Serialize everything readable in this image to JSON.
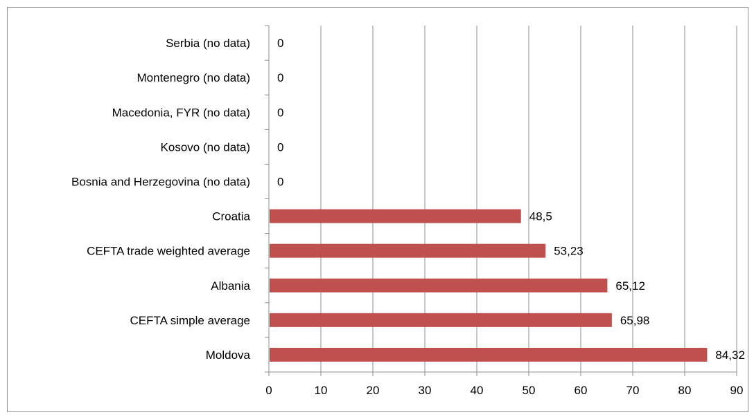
{
  "chart_data": {
    "type": "bar",
    "orientation": "horizontal",
    "categories": [
      "Serbia (no data)",
      "Montenegro (no data)",
      "Macedonia, FYR (no data)",
      "Kosovo (no data)",
      "Bosnia and Herzegovina (no data)",
      "Croatia",
      "CEFTA trade weighted average",
      "Albania",
      "CEFTA simple average",
      "Moldova"
    ],
    "values": [
      0,
      0,
      0,
      0,
      0,
      48.5,
      53.23,
      65.12,
      65.98,
      84.32
    ],
    "value_labels": [
      "0",
      "0",
      "0",
      "0",
      "0",
      "48,5",
      "53,23",
      "65,12",
      "65,98",
      "84,32"
    ],
    "xlim": [
      0,
      90
    ],
    "x_ticks": [
      0,
      10,
      20,
      30,
      40,
      50,
      60,
      70,
      80,
      90
    ],
    "title": "",
    "xlabel": "",
    "ylabel": "",
    "grid": "vertical",
    "legend": "none",
    "bar_color": "#c0504d",
    "grid_color": "#8c8c8c"
  }
}
